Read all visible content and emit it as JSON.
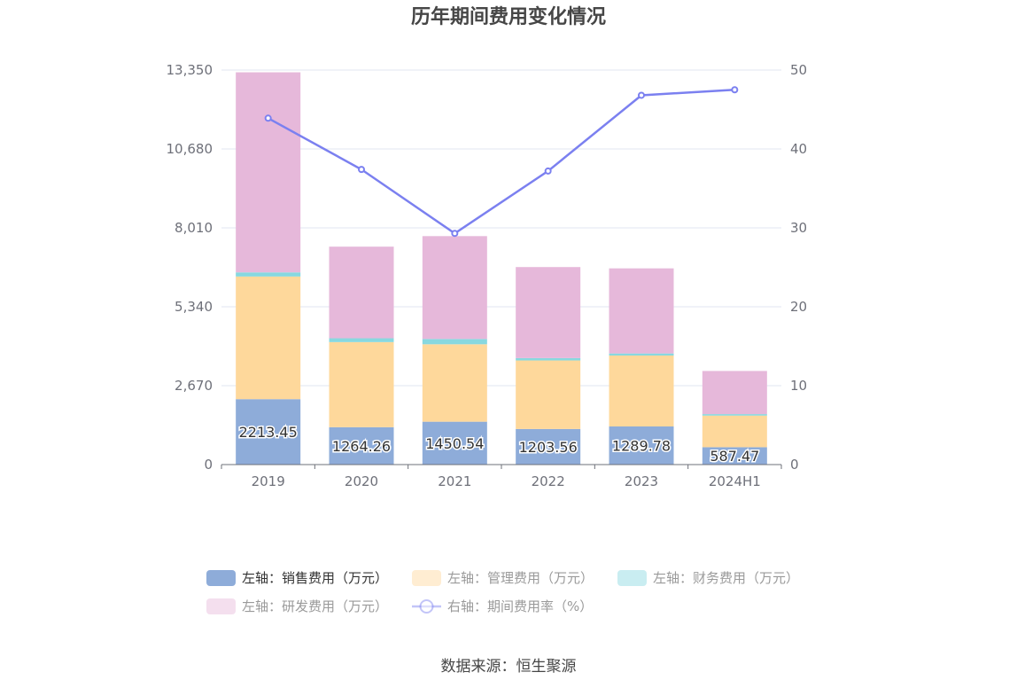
{
  "chart_data": {
    "type": "bar",
    "title": "历年期间费用变化情况",
    "categories": [
      "2019",
      "2020",
      "2021",
      "2022",
      "2023",
      "2024H1"
    ],
    "left_axis": {
      "ticks": [
        "0",
        "2,670",
        "5,340",
        "8,010",
        "10,680",
        "13,350"
      ],
      "ylim": [
        0,
        13350
      ]
    },
    "right_axis": {
      "ticks": [
        "0",
        "10",
        "20",
        "30",
        "40",
        "50"
      ],
      "ylim": [
        0,
        50
      ]
    },
    "series": [
      {
        "name": "左轴：销售费用（万元）",
        "type": "bar",
        "axis": "left",
        "color": "#8eacd9",
        "values": [
          2213.45,
          1264.26,
          1450.54,
          1203.56,
          1289.78,
          587.47
        ],
        "labels": [
          "2213.45",
          "1264.26",
          "1450.54",
          "1203.56",
          "1289.78",
          "587.47"
        ]
      },
      {
        "name": "左轴：管理费用（万元）",
        "type": "bar",
        "axis": "left",
        "color": "#fed89b",
        "values": [
          4150,
          2880,
          2620,
          2320,
          2400,
          1070
        ]
      },
      {
        "name": "左轴：财务费用（万元）",
        "type": "bar",
        "axis": "left",
        "color": "#88d8df",
        "values": [
          140,
          130,
          180,
          80,
          70,
          50
        ]
      },
      {
        "name": "左轴：研发费用（万元）",
        "type": "bar",
        "axis": "left",
        "color": "#e6b8da",
        "values": [
          6770,
          3100,
          3480,
          3080,
          2880,
          1460
        ]
      },
      {
        "name": "右轴：期间费用率（%）",
        "type": "line",
        "axis": "right",
        "color": "#7b80f0",
        "values": [
          43.9,
          37.4,
          29.3,
          37.2,
          46.8,
          47.5
        ]
      }
    ],
    "legend_position": "bottom"
  },
  "source": "数据来源：恒生聚源"
}
